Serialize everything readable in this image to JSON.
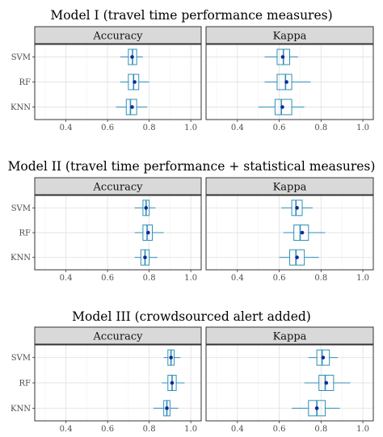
{
  "chart_data": [
    {
      "type": "boxplot",
      "title": "Model I (travel time performance measures)",
      "categories": [
        "SVM",
        "RF",
        "KNN"
      ],
      "xlim": [
        0.25,
        1.05
      ],
      "xticks": [
        0.4,
        0.6,
        0.8,
        1.0
      ],
      "xtick_labels": [
        "0.4",
        "0.6",
        "0.8",
        "1.0"
      ],
      "grid": true,
      "panels": [
        {
          "facet": "Accuracy",
          "boxes": [
            {
              "category": "SVM",
              "whisker_low": 0.66,
              "q1": 0.7,
              "median": 0.72,
              "q3": 0.74,
              "whisker_high": 0.77,
              "mean": 0.718
            },
            {
              "category": "RF",
              "whisker_low": 0.66,
              "q1": 0.7,
              "median": 0.725,
              "q3": 0.75,
              "whisker_high": 0.8,
              "mean": 0.73
            },
            {
              "category": "KNN",
              "whisker_low": 0.64,
              "q1": 0.69,
              "median": 0.71,
              "q3": 0.74,
              "whisker_high": 0.79,
              "mean": 0.718
            }
          ]
        },
        {
          "facet": "Kappa",
          "boxes": [
            {
              "category": "SVM",
              "whisker_low": 0.53,
              "q1": 0.59,
              "median": 0.62,
              "q3": 0.65,
              "whisker_high": 0.69,
              "mean": 0.617
            },
            {
              "category": "RF",
              "whisker_low": 0.53,
              "q1": 0.59,
              "median": 0.63,
              "q3": 0.66,
              "whisker_high": 0.75,
              "mean": 0.635
            },
            {
              "category": "KNN",
              "whisker_low": 0.5,
              "q1": 0.58,
              "median": 0.61,
              "q3": 0.66,
              "whisker_high": 0.72,
              "mean": 0.615
            }
          ]
        }
      ]
    },
    {
      "type": "boxplot",
      "title": "Model II (travel time performance + statistical measures)",
      "categories": [
        "SVM",
        "RF",
        "KNN"
      ],
      "xlim": [
        0.25,
        1.05
      ],
      "xticks": [
        0.4,
        0.6,
        0.8,
        1.0
      ],
      "xtick_labels": [
        "0.4",
        "0.6",
        "0.8",
        "1.0"
      ],
      "grid": true,
      "panels": [
        {
          "facet": "Accuracy",
          "boxes": [
            {
              "category": "SVM",
              "whisker_low": 0.73,
              "q1": 0.77,
              "median": 0.785,
              "q3": 0.8,
              "whisker_high": 0.83,
              "mean": 0.785
            },
            {
              "category": "RF",
              "whisker_low": 0.73,
              "q1": 0.77,
              "median": 0.79,
              "q3": 0.815,
              "whisker_high": 0.87,
              "mean": 0.795
            },
            {
              "category": "KNN",
              "whisker_low": 0.73,
              "q1": 0.76,
              "median": 0.78,
              "q3": 0.8,
              "whisker_high": 0.84,
              "mean": 0.78
            }
          ]
        },
        {
          "facet": "Kappa",
          "boxes": [
            {
              "category": "SVM",
              "whisker_low": 0.61,
              "q1": 0.66,
              "median": 0.68,
              "q3": 0.71,
              "whisker_high": 0.76,
              "mean": 0.685
            },
            {
              "category": "RF",
              "whisker_low": 0.62,
              "q1": 0.67,
              "median": 0.7,
              "q3": 0.74,
              "whisker_high": 0.82,
              "mean": 0.71
            },
            {
              "category": "KNN",
              "whisker_low": 0.6,
              "q1": 0.65,
              "median": 0.68,
              "q3": 0.72,
              "whisker_high": 0.79,
              "mean": 0.685
            }
          ]
        }
      ]
    },
    {
      "type": "boxplot",
      "title": "Model III (crowdsourced alert added)",
      "categories": [
        "SVM",
        "RF",
        "KNN"
      ],
      "xlim": [
        0.25,
        1.05
      ],
      "xticks": [
        0.4,
        0.6,
        0.8,
        1.0
      ],
      "xtick_labels": [
        "0.4",
        "0.6",
        "0.8",
        "1.0"
      ],
      "grid": true,
      "panels": [
        {
          "facet": "Accuracy",
          "boxes": [
            {
              "category": "SVM",
              "whisker_low": 0.87,
              "q1": 0.89,
              "median": 0.905,
              "q3": 0.92,
              "whisker_high": 0.95,
              "mean": 0.905
            },
            {
              "category": "RF",
              "whisker_low": 0.86,
              "q1": 0.89,
              "median": 0.91,
              "q3": 0.93,
              "whisker_high": 0.97,
              "mean": 0.91
            },
            {
              "category": "KNN",
              "whisker_low": 0.82,
              "q1": 0.87,
              "median": 0.885,
              "q3": 0.9,
              "whisker_high": 0.94,
              "mean": 0.885
            }
          ]
        },
        {
          "facet": "Kappa",
          "boxes": [
            {
              "category": "SVM",
              "whisker_low": 0.74,
              "q1": 0.78,
              "median": 0.805,
              "q3": 0.84,
              "whisker_high": 0.88,
              "mean": 0.81
            },
            {
              "category": "RF",
              "whisker_low": 0.72,
              "q1": 0.79,
              "median": 0.82,
              "q3": 0.86,
              "whisker_high": 0.94,
              "mean": 0.825
            },
            {
              "category": "KNN",
              "whisker_low": 0.66,
              "q1": 0.74,
              "median": 0.78,
              "q3": 0.82,
              "whisker_high": 0.89,
              "mean": 0.78
            }
          ]
        }
      ]
    }
  ],
  "colors": {
    "box_stroke": "#2f8fb8",
    "mean_point": "#0a2a9c",
    "panel_border": "#333333",
    "strip_fill": "#d9d9d9",
    "grid_major": "#e3e3e3",
    "grid_minor": "#f2f2f2"
  }
}
